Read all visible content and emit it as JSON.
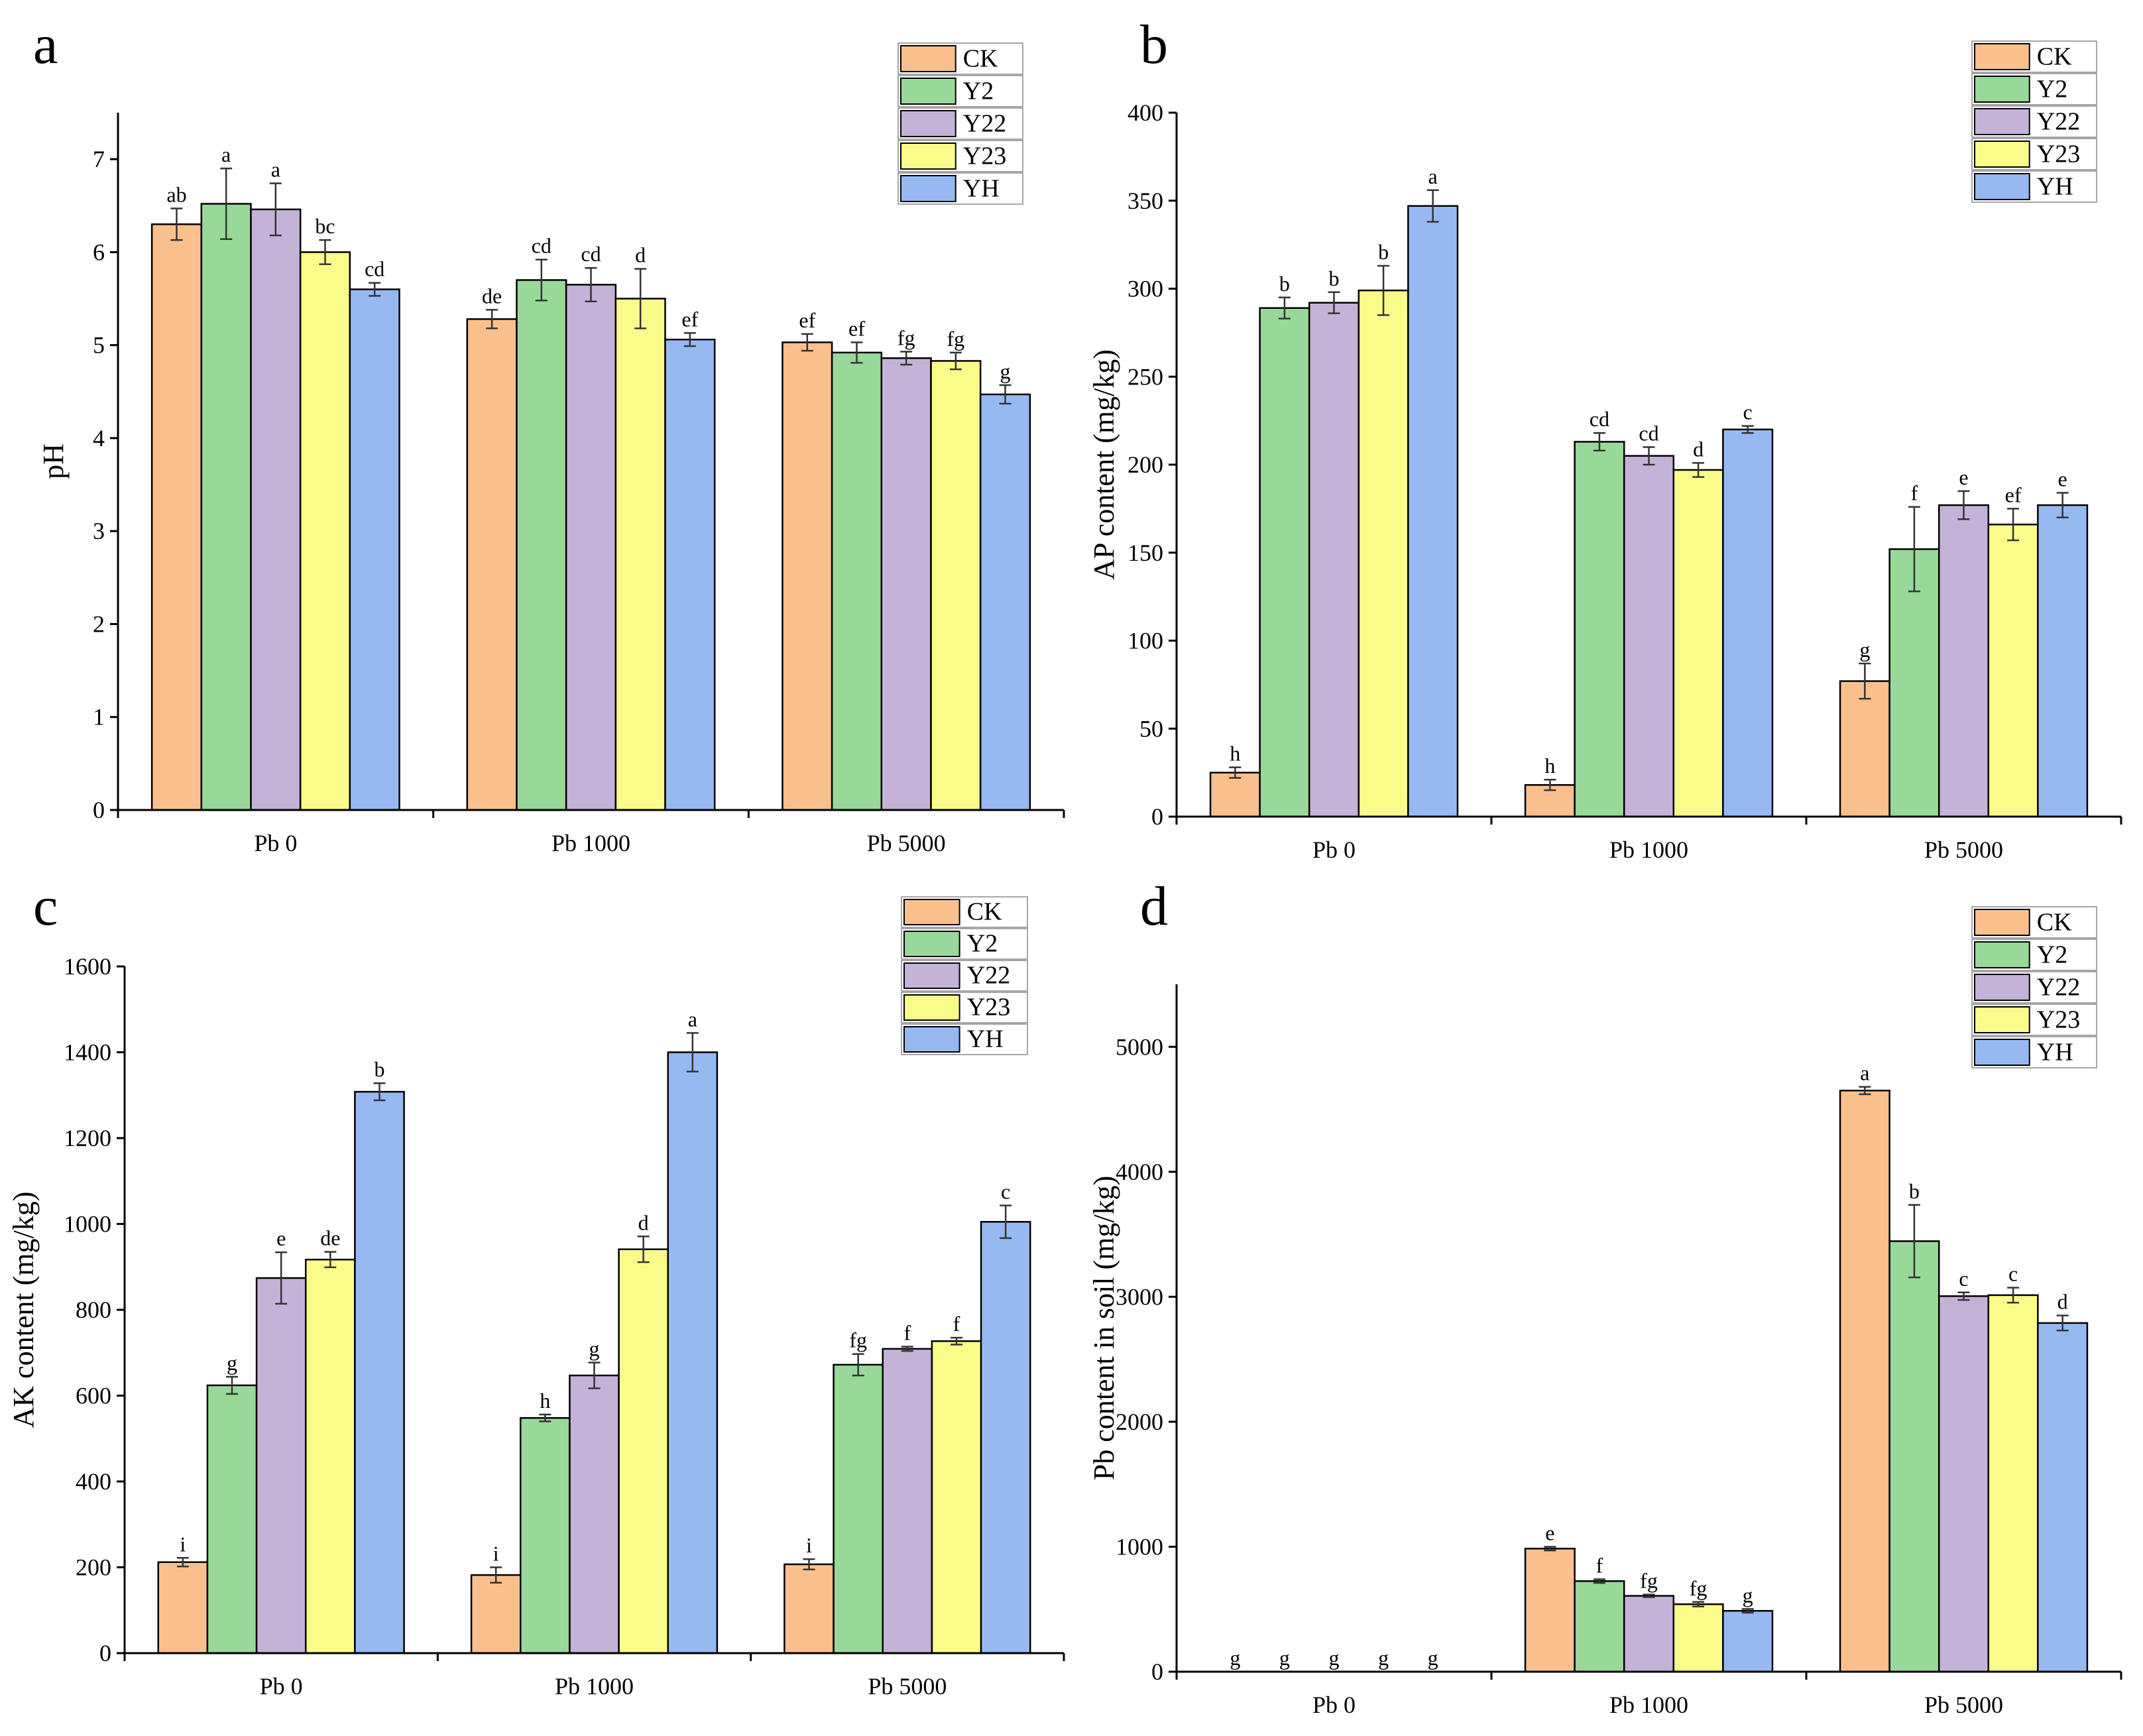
{
  "colors": {
    "CK": "#f9c08e",
    "Y2": "#98d899",
    "Y22": "#c5b2d8",
    "Y23": "#fbfb8a",
    "YH": "#96b9f2",
    "edge": "#000000",
    "sig": "#000000"
  },
  "chart_data": [
    {
      "id": "a",
      "letter": "a",
      "type": "bar",
      "categories": [
        "Pb 0",
        "Pb 1000",
        "Pb 5000"
      ],
      "ylabel": "pH",
      "ylim": [
        0,
        7.5
      ],
      "yticks": [
        0,
        1,
        2,
        3,
        4,
        5,
        6,
        7
      ],
      "legend_position": "top-right",
      "series": [
        {
          "name": "CK",
          "values": [
            6.3,
            5.28,
            5.03
          ],
          "errors": [
            0.17,
            0.1,
            0.09
          ],
          "letters": [
            "ab",
            "de",
            "ef"
          ]
        },
        {
          "name": "Y2",
          "values": [
            6.52,
            5.7,
            4.92
          ],
          "errors": [
            0.38,
            0.22,
            0.11
          ],
          "letters": [
            "a",
            "cd",
            "ef"
          ]
        },
        {
          "name": "Y22",
          "values": [
            6.46,
            5.65,
            4.86
          ],
          "errors": [
            0.28,
            0.18,
            0.07
          ],
          "letters": [
            "a",
            "cd",
            "fg"
          ]
        },
        {
          "name": "Y23",
          "values": [
            6.0,
            5.5,
            4.83
          ],
          "errors": [
            0.13,
            0.32,
            0.09
          ],
          "letters": [
            "bc",
            "d",
            "fg"
          ]
        },
        {
          "name": "YH",
          "values": [
            5.6,
            5.06,
            4.47
          ],
          "errors": [
            0.07,
            0.07,
            0.1
          ],
          "letters": [
            "cd",
            "ef",
            "g"
          ]
        }
      ]
    },
    {
      "id": "b",
      "letter": "b",
      "type": "bar",
      "categories": [
        "Pb 0",
        "Pb 1000",
        "Pb 5000"
      ],
      "ylabel": "AP content (mg/kg)",
      "ylim": [
        0,
        400
      ],
      "yticks": [
        0,
        50,
        100,
        150,
        200,
        250,
        300,
        350,
        400
      ],
      "legend_position": "top-right",
      "series": [
        {
          "name": "CK",
          "values": [
            25,
            18,
            77
          ],
          "errors": [
            3,
            3,
            10
          ],
          "letters": [
            "h",
            "h",
            "g"
          ]
        },
        {
          "name": "Y2",
          "values": [
            289,
            213,
            152
          ],
          "errors": [
            6,
            5,
            24
          ],
          "letters": [
            "b",
            "cd",
            "f"
          ]
        },
        {
          "name": "Y22",
          "values": [
            292,
            205,
            177
          ],
          "errors": [
            6,
            5,
            8
          ],
          "letters": [
            "b",
            "cd",
            "e"
          ]
        },
        {
          "name": "Y23",
          "values": [
            299,
            197,
            166
          ],
          "errors": [
            14,
            4,
            9
          ],
          "letters": [
            "b",
            "d",
            "ef"
          ]
        },
        {
          "name": "YH",
          "values": [
            347,
            220,
            177
          ],
          "errors": [
            9,
            2,
            7
          ],
          "letters": [
            "a",
            "c",
            "e"
          ]
        }
      ]
    },
    {
      "id": "c",
      "letter": "c",
      "type": "bar",
      "categories": [
        "Pb 0",
        "Pb 1000",
        "Pb 5000"
      ],
      "ylabel": "AK content (mg/kg)",
      "ylim": [
        0,
        1600
      ],
      "yticks": [
        0,
        200,
        400,
        600,
        800,
        1000,
        1200,
        1400,
        1600
      ],
      "legend_position": "top-right",
      "series": [
        {
          "name": "CK",
          "values": [
            212,
            182,
            207
          ],
          "errors": [
            10,
            18,
            12
          ],
          "letters": [
            "i",
            "i",
            "i"
          ]
        },
        {
          "name": "Y2",
          "values": [
            624,
            548,
            672
          ],
          "errors": [
            20,
            8,
            25
          ],
          "letters": [
            "g",
            "h",
            "fg"
          ]
        },
        {
          "name": "Y22",
          "values": [
            874,
            647,
            709
          ],
          "errors": [
            60,
            30,
            5
          ],
          "letters": [
            "e",
            "g",
            "f"
          ]
        },
        {
          "name": "Y23",
          "values": [
            917,
            941,
            727
          ],
          "errors": [
            18,
            30,
            8
          ],
          "letters": [
            "de",
            "d",
            "f"
          ]
        },
        {
          "name": "YH",
          "values": [
            1308,
            1400,
            1005
          ],
          "errors": [
            20,
            45,
            38
          ],
          "letters": [
            "b",
            "a",
            "c"
          ]
        }
      ]
    },
    {
      "id": "d",
      "letter": "d",
      "type": "bar",
      "categories": [
        "Pb 0",
        "Pb 1000",
        "Pb 5000"
      ],
      "ylabel": "Pb content in soil (mg/kg)",
      "ylim": [
        0,
        5500
      ],
      "yticks": [
        0,
        1000,
        2000,
        3000,
        4000,
        5000
      ],
      "legend_position": "top-right",
      "series": [
        {
          "name": "CK",
          "values": [
            0,
            985,
            4650
          ],
          "errors": [
            0,
            15,
            30
          ],
          "letters": [
            "g",
            "e",
            "a"
          ]
        },
        {
          "name": "Y2",
          "values": [
            0,
            725,
            3445
          ],
          "errors": [
            0,
            15,
            290
          ],
          "letters": [
            "g",
            "f",
            "b"
          ]
        },
        {
          "name": "Y22",
          "values": [
            0,
            607,
            3005
          ],
          "errors": [
            0,
            10,
            30
          ],
          "letters": [
            "g",
            "fg",
            "c"
          ]
        },
        {
          "name": "Y23",
          "values": [
            0,
            540,
            3013
          ],
          "errors": [
            0,
            18,
            60
          ],
          "letters": [
            "g",
            "fg",
            "c"
          ]
        },
        {
          "name": "YH",
          "values": [
            0,
            487,
            2790
          ],
          "errors": [
            0,
            15,
            60
          ],
          "letters": [
            "g",
            "g",
            "d"
          ]
        }
      ]
    }
  ]
}
